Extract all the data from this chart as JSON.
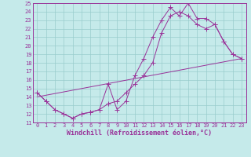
{
  "xlabel": "Windchill (Refroidissement éolien,°C)",
  "xlim": [
    -0.5,
    23.5
  ],
  "ylim": [
    11,
    25
  ],
  "xticks": [
    0,
    1,
    2,
    3,
    4,
    5,
    6,
    7,
    8,
    9,
    10,
    11,
    12,
    13,
    14,
    15,
    16,
    17,
    18,
    19,
    20,
    21,
    22,
    23
  ],
  "yticks": [
    11,
    12,
    13,
    14,
    15,
    16,
    17,
    18,
    19,
    20,
    21,
    22,
    23,
    24,
    25
  ],
  "bg_color": "#c5eaea",
  "line_color": "#993399",
  "grid_color": "#99cccc",
  "line1_x": [
    0,
    1,
    2,
    3,
    4,
    5,
    6,
    7,
    8,
    9,
    10,
    11,
    12,
    13,
    14,
    15,
    16,
    17,
    18,
    19,
    20,
    21,
    22,
    23
  ],
  "line1_y": [
    14.5,
    13.5,
    12.5,
    12.0,
    11.5,
    12.0,
    12.2,
    12.5,
    15.5,
    12.5,
    13.5,
    16.5,
    18.5,
    21.0,
    23.0,
    24.5,
    23.5,
    25.0,
    23.2,
    23.2,
    22.5,
    20.5,
    19.0,
    18.5
  ],
  "line2_x": [
    0,
    1,
    2,
    3,
    4,
    5,
    6,
    7,
    8,
    9,
    10,
    11,
    12,
    13,
    14,
    15,
    16,
    17,
    18,
    19,
    20,
    21,
    22,
    23
  ],
  "line2_y": [
    14.5,
    13.5,
    12.5,
    12.0,
    11.5,
    12.0,
    12.2,
    12.5,
    13.2,
    13.5,
    14.5,
    15.5,
    16.5,
    18.0,
    21.5,
    23.5,
    24.0,
    23.5,
    22.5,
    22.0,
    22.5,
    20.5,
    19.0,
    18.5
  ],
  "line3_x": [
    0,
    23
  ],
  "line3_y": [
    14.0,
    18.5
  ],
  "marker_size": 2.5,
  "font_color": "#993399",
  "tick_fontsize": 5,
  "label_fontsize": 6
}
